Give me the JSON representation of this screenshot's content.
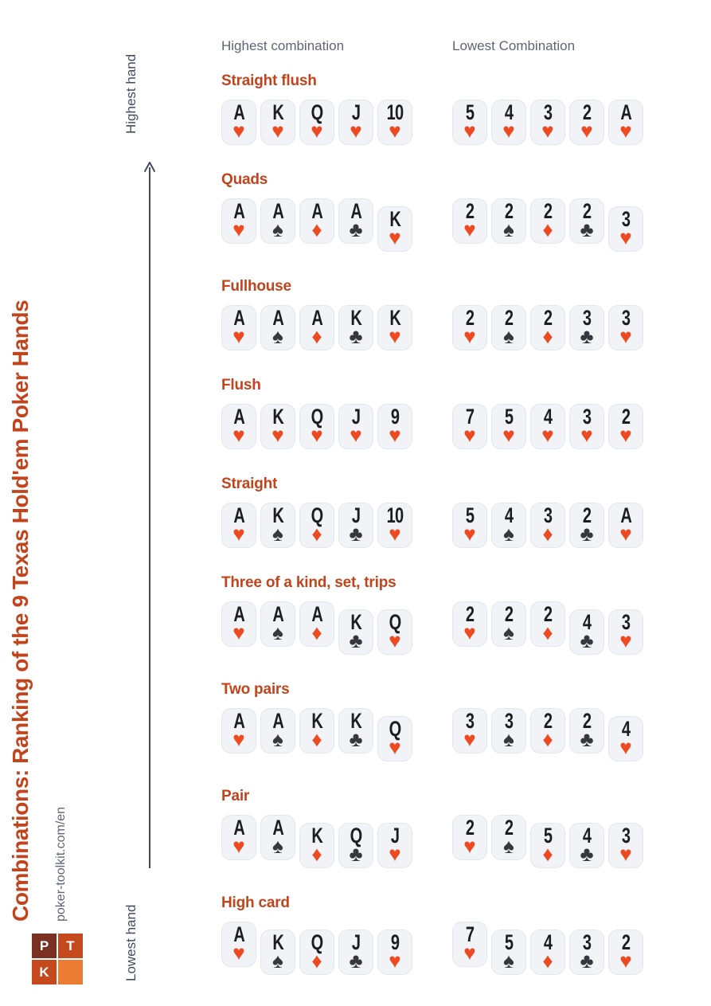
{
  "page": {
    "title": "Combinations: Ranking of the 9 Texas Hold'em Poker Hands",
    "site": "poker-toolkit.com/en"
  },
  "logo": {
    "cells": [
      {
        "letter": "P",
        "color": "#7b3122"
      },
      {
        "letter": "T",
        "color": "#c44a1e"
      },
      {
        "letter": "K",
        "color": "#c44a1e"
      },
      {
        "letter": "",
        "color": "#ec7c33"
      }
    ]
  },
  "axis": {
    "top_label": "Highest hand",
    "bottom_label": "Lowest hand"
  },
  "columns": {
    "highest": "Highest combination",
    "lowest": "Lowest Combination"
  },
  "colors": {
    "accent": "#c2441c",
    "suit_red": "#ed4a21",
    "suit_black": "#35393f",
    "card_bg": "#f1f3f7",
    "card_border": "#e2e6ed",
    "axis": "#414d5f",
    "gray_text": "#5d6574"
  },
  "hands": [
    {
      "name": "Straight flush",
      "highest": [
        {
          "rank": "A",
          "suit": "heart",
          "kicker": false
        },
        {
          "rank": "K",
          "suit": "heart",
          "kicker": false
        },
        {
          "rank": "Q",
          "suit": "heart",
          "kicker": false
        },
        {
          "rank": "J",
          "suit": "heart",
          "kicker": false
        },
        {
          "rank": "10",
          "suit": "heart",
          "kicker": false
        }
      ],
      "lowest": [
        {
          "rank": "5",
          "suit": "heart",
          "kicker": false
        },
        {
          "rank": "4",
          "suit": "heart",
          "kicker": false
        },
        {
          "rank": "3",
          "suit": "heart",
          "kicker": false
        },
        {
          "rank": "2",
          "suit": "heart",
          "kicker": false
        },
        {
          "rank": "A",
          "suit": "heart",
          "kicker": false
        }
      ]
    },
    {
      "name": "Quads",
      "highest": [
        {
          "rank": "A",
          "suit": "heart",
          "kicker": false
        },
        {
          "rank": "A",
          "suit": "spade",
          "kicker": false
        },
        {
          "rank": "A",
          "suit": "diamond",
          "kicker": false
        },
        {
          "rank": "A",
          "suit": "club",
          "kicker": false
        },
        {
          "rank": "K",
          "suit": "heart",
          "kicker": true
        }
      ],
      "lowest": [
        {
          "rank": "2",
          "suit": "heart",
          "kicker": false
        },
        {
          "rank": "2",
          "suit": "spade",
          "kicker": false
        },
        {
          "rank": "2",
          "suit": "diamond",
          "kicker": false
        },
        {
          "rank": "2",
          "suit": "club",
          "kicker": false
        },
        {
          "rank": "3",
          "suit": "heart",
          "kicker": true
        }
      ]
    },
    {
      "name": "Fullhouse",
      "highest": [
        {
          "rank": "A",
          "suit": "heart",
          "kicker": false
        },
        {
          "rank": "A",
          "suit": "spade",
          "kicker": false
        },
        {
          "rank": "A",
          "suit": "diamond",
          "kicker": false
        },
        {
          "rank": "K",
          "suit": "club",
          "kicker": false
        },
        {
          "rank": "K",
          "suit": "heart",
          "kicker": false
        }
      ],
      "lowest": [
        {
          "rank": "2",
          "suit": "heart",
          "kicker": false
        },
        {
          "rank": "2",
          "suit": "spade",
          "kicker": false
        },
        {
          "rank": "2",
          "suit": "diamond",
          "kicker": false
        },
        {
          "rank": "3",
          "suit": "club",
          "kicker": false
        },
        {
          "rank": "3",
          "suit": "heart",
          "kicker": false
        }
      ]
    },
    {
      "name": "Flush",
      "highest": [
        {
          "rank": "A",
          "suit": "heart",
          "kicker": false
        },
        {
          "rank": "K",
          "suit": "heart",
          "kicker": false
        },
        {
          "rank": "Q",
          "suit": "heart",
          "kicker": false
        },
        {
          "rank": "J",
          "suit": "heart",
          "kicker": false
        },
        {
          "rank": "9",
          "suit": "heart",
          "kicker": false
        }
      ],
      "lowest": [
        {
          "rank": "7",
          "suit": "heart",
          "kicker": false
        },
        {
          "rank": "5",
          "suit": "heart",
          "kicker": false
        },
        {
          "rank": "4",
          "suit": "heart",
          "kicker": false
        },
        {
          "rank": "3",
          "suit": "heart",
          "kicker": false
        },
        {
          "rank": "2",
          "suit": "heart",
          "kicker": false
        }
      ]
    },
    {
      "name": "Straight",
      "highest": [
        {
          "rank": "A",
          "suit": "heart",
          "kicker": false
        },
        {
          "rank": "K",
          "suit": "spade",
          "kicker": false
        },
        {
          "rank": "Q",
          "suit": "diamond",
          "kicker": false
        },
        {
          "rank": "J",
          "suit": "club",
          "kicker": false
        },
        {
          "rank": "10",
          "suit": "heart",
          "kicker": false
        }
      ],
      "lowest": [
        {
          "rank": "5",
          "suit": "heart",
          "kicker": false
        },
        {
          "rank": "4",
          "suit": "spade",
          "kicker": false
        },
        {
          "rank": "3",
          "suit": "diamond",
          "kicker": false
        },
        {
          "rank": "2",
          "suit": "club",
          "kicker": false
        },
        {
          "rank": "A",
          "suit": "heart",
          "kicker": false
        }
      ]
    },
    {
      "name": "Three of a kind, set, trips",
      "highest": [
        {
          "rank": "A",
          "suit": "heart",
          "kicker": false
        },
        {
          "rank": "A",
          "suit": "spade",
          "kicker": false
        },
        {
          "rank": "A",
          "suit": "diamond",
          "kicker": false
        },
        {
          "rank": "K",
          "suit": "club",
          "kicker": true
        },
        {
          "rank": "Q",
          "suit": "heart",
          "kicker": true
        }
      ],
      "lowest": [
        {
          "rank": "2",
          "suit": "heart",
          "kicker": false
        },
        {
          "rank": "2",
          "suit": "spade",
          "kicker": false
        },
        {
          "rank": "2",
          "suit": "diamond",
          "kicker": false
        },
        {
          "rank": "4",
          "suit": "club",
          "kicker": true
        },
        {
          "rank": "3",
          "suit": "heart",
          "kicker": true
        }
      ]
    },
    {
      "name": "Two pairs",
      "highest": [
        {
          "rank": "A",
          "suit": "heart",
          "kicker": false
        },
        {
          "rank": "A",
          "suit": "spade",
          "kicker": false
        },
        {
          "rank": "K",
          "suit": "diamond",
          "kicker": false
        },
        {
          "rank": "K",
          "suit": "club",
          "kicker": false
        },
        {
          "rank": "Q",
          "suit": "heart",
          "kicker": true
        }
      ],
      "lowest": [
        {
          "rank": "3",
          "suit": "heart",
          "kicker": false
        },
        {
          "rank": "3",
          "suit": "spade",
          "kicker": false
        },
        {
          "rank": "2",
          "suit": "diamond",
          "kicker": false
        },
        {
          "rank": "2",
          "suit": "club",
          "kicker": false
        },
        {
          "rank": "4",
          "suit": "heart",
          "kicker": true
        }
      ]
    },
    {
      "name": "Pair",
      "highest": [
        {
          "rank": "A",
          "suit": "heart",
          "kicker": false
        },
        {
          "rank": "A",
          "suit": "spade",
          "kicker": false
        },
        {
          "rank": "K",
          "suit": "diamond",
          "kicker": true
        },
        {
          "rank": "Q",
          "suit": "club",
          "kicker": true
        },
        {
          "rank": "J",
          "suit": "heart",
          "kicker": true
        }
      ],
      "lowest": [
        {
          "rank": "2",
          "suit": "heart",
          "kicker": false
        },
        {
          "rank": "2",
          "suit": "spade",
          "kicker": false
        },
        {
          "rank": "5",
          "suit": "diamond",
          "kicker": true
        },
        {
          "rank": "4",
          "suit": "club",
          "kicker": true
        },
        {
          "rank": "3",
          "suit": "heart",
          "kicker": true
        }
      ]
    },
    {
      "name": "High card",
      "highest": [
        {
          "rank": "A",
          "suit": "heart",
          "kicker": false
        },
        {
          "rank": "K",
          "suit": "spade",
          "kicker": true
        },
        {
          "rank": "Q",
          "suit": "diamond",
          "kicker": true
        },
        {
          "rank": "J",
          "suit": "club",
          "kicker": true
        },
        {
          "rank": "9",
          "suit": "heart",
          "kicker": true
        }
      ],
      "lowest": [
        {
          "rank": "7",
          "suit": "heart",
          "kicker": false
        },
        {
          "rank": "5",
          "suit": "spade",
          "kicker": true
        },
        {
          "rank": "4",
          "suit": "diamond",
          "kicker": true
        },
        {
          "rank": "3",
          "suit": "club",
          "kicker": true
        },
        {
          "rank": "2",
          "suit": "heart",
          "kicker": true
        }
      ]
    }
  ]
}
